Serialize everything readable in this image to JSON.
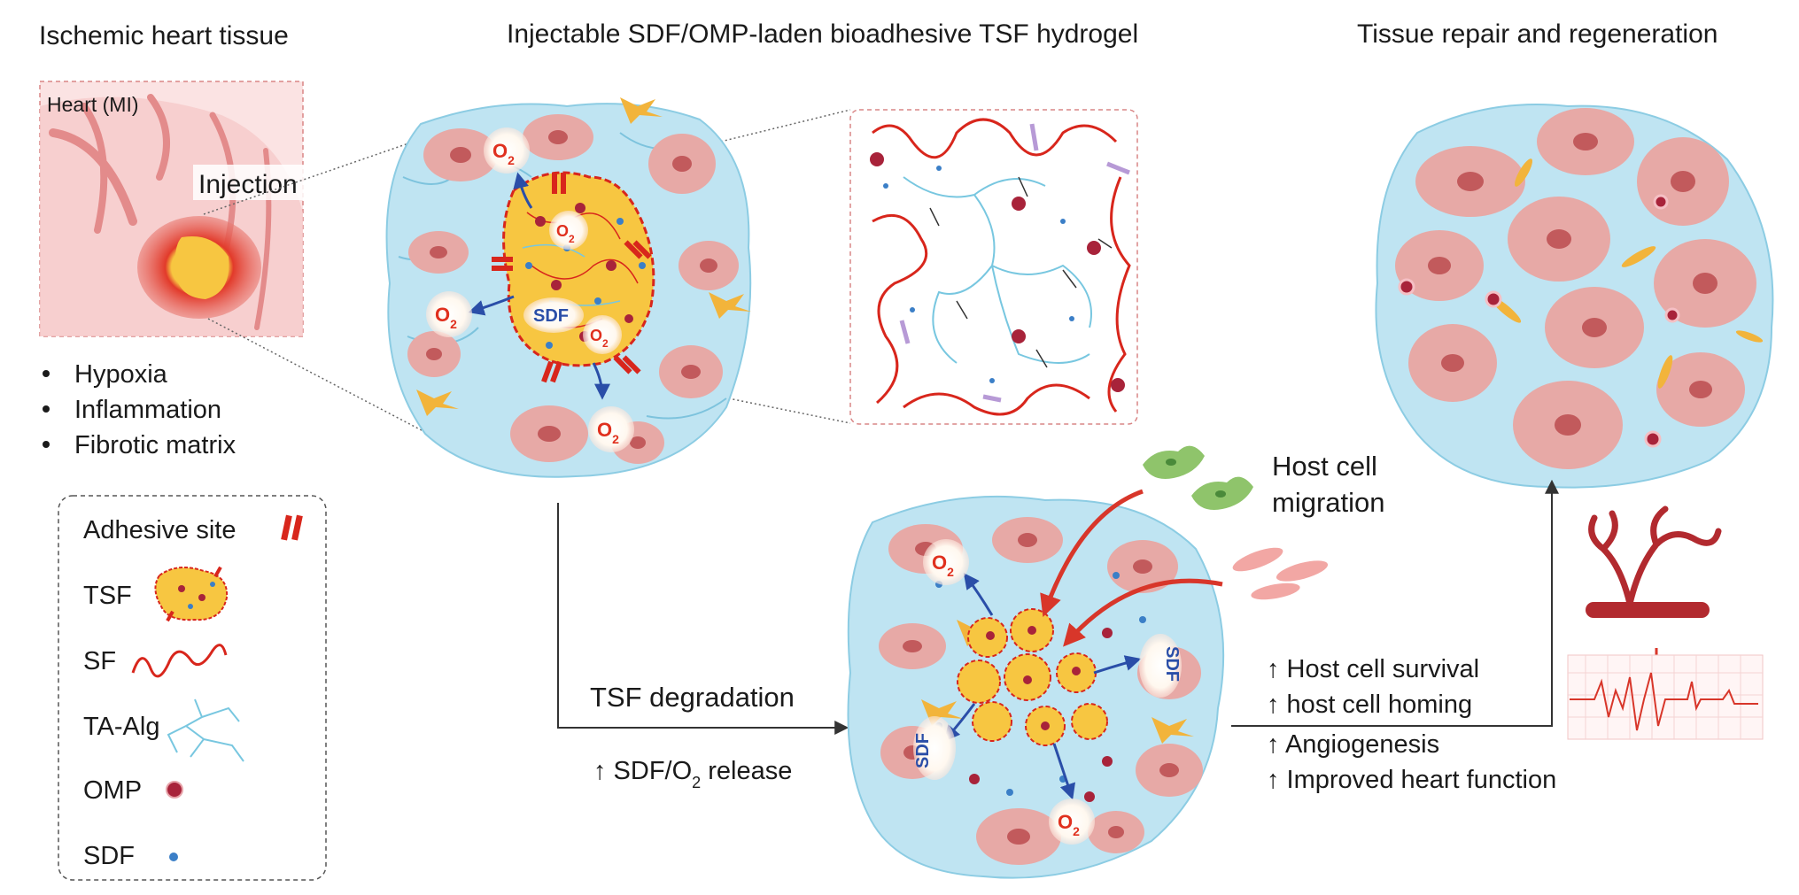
{
  "titles": {
    "left": "Ischemic heart tissue",
    "middle": "Injectable SDF/OMP-laden bioadhesive TSF hydrogel",
    "right": "Tissue repair and regeneration"
  },
  "heart": {
    "label": "Heart (MI)",
    "injection": "Injection"
  },
  "conditions": [
    "Hypoxia",
    "Inflammation",
    "Fibrotic matrix"
  ],
  "legend": {
    "items": [
      {
        "label": "Adhesive site",
        "icon": "adhesive-site-icon"
      },
      {
        "label": "TSF",
        "icon": "tsf-icon"
      },
      {
        "label": "SF",
        "icon": "sf-icon"
      },
      {
        "label": "TA-Alg",
        "icon": "ta-alg-icon"
      },
      {
        "label": "OMP",
        "icon": "omp-icon"
      },
      {
        "label": "SDF",
        "icon": "sdf-icon"
      }
    ]
  },
  "molecules": {
    "o2_main": "O",
    "o2_sub": "2",
    "sdf": "SDF"
  },
  "degradation": {
    "label": "TSF degradation",
    "release_prefix": "↑ SDF/O",
    "release_sub": "2",
    "release_suffix": " release"
  },
  "host": {
    "line1": "Host cell",
    "line2": "migration"
  },
  "outcomes": [
    "↑ Host cell survival",
    "↑ host cell homing",
    "↑ Angiogenesis",
    "↑ Improved heart function"
  ],
  "colors": {
    "tissue_blue": "#bfe4f2",
    "cell_pink": "#e7a9a6",
    "nucleus": "#c25a5c",
    "hydrogel_yellow": "#f7c641",
    "adhesive_red": "#d8261c",
    "sdf_blue": "#3b7fc7",
    "omp_red": "#a8233a",
    "fibroblast_orange": "#f2b43b"
  }
}
